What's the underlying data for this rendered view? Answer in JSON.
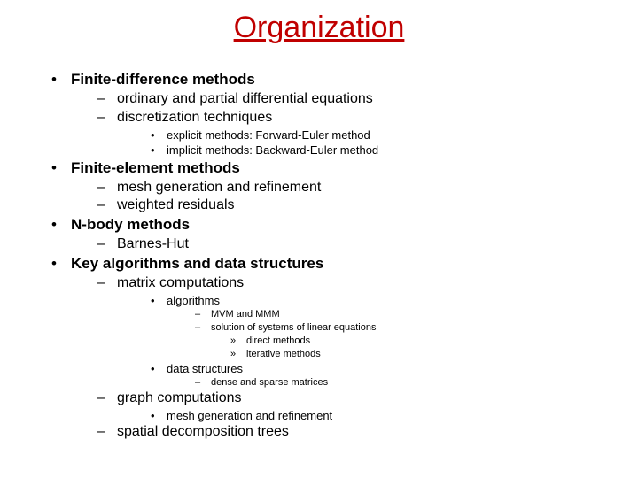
{
  "title": "Organization",
  "title_color": "#c00000",
  "text_color": "#000000",
  "background_color": "#ffffff",
  "font_family": "Arial",
  "bullets": {
    "l1": "•",
    "l2": "–",
    "l3": "•",
    "l4": "–",
    "l5": "»"
  },
  "items": [
    {
      "level": 1,
      "text": "Finite-difference methods"
    },
    {
      "level": 2,
      "text": "ordinary and partial differential equations"
    },
    {
      "level": 2,
      "text": "discretization techniques"
    },
    {
      "level": 3,
      "text": "explicit methods: Forward-Euler method"
    },
    {
      "level": 3,
      "text": "implicit methods: Backward-Euler method"
    },
    {
      "level": 1,
      "text": "Finite-element methods"
    },
    {
      "level": 2,
      "text": "mesh generation and refinement"
    },
    {
      "level": 2,
      "text": "weighted residuals"
    },
    {
      "level": 1,
      "text": "N-body methods"
    },
    {
      "level": 2,
      "text": "Barnes-Hut"
    },
    {
      "level": 1,
      "text": "Key algorithms and data structures"
    },
    {
      "level": 2,
      "text": "matrix computations"
    },
    {
      "level": 3,
      "text": "algorithms"
    },
    {
      "level": 4,
      "text": "MVM and MMM"
    },
    {
      "level": 4,
      "text": "solution of systems of linear equations"
    },
    {
      "level": 5,
      "text": "direct methods"
    },
    {
      "level": 5,
      "text": "iterative methods"
    },
    {
      "level": 3,
      "text": "data structures"
    },
    {
      "level": 4,
      "text": "dense and sparse matrices"
    },
    {
      "level": 2,
      "text": "graph computations"
    },
    {
      "level": 3,
      "text": "mesh generation and refinement"
    },
    {
      "level": 2,
      "text": "spatial decomposition trees"
    }
  ]
}
